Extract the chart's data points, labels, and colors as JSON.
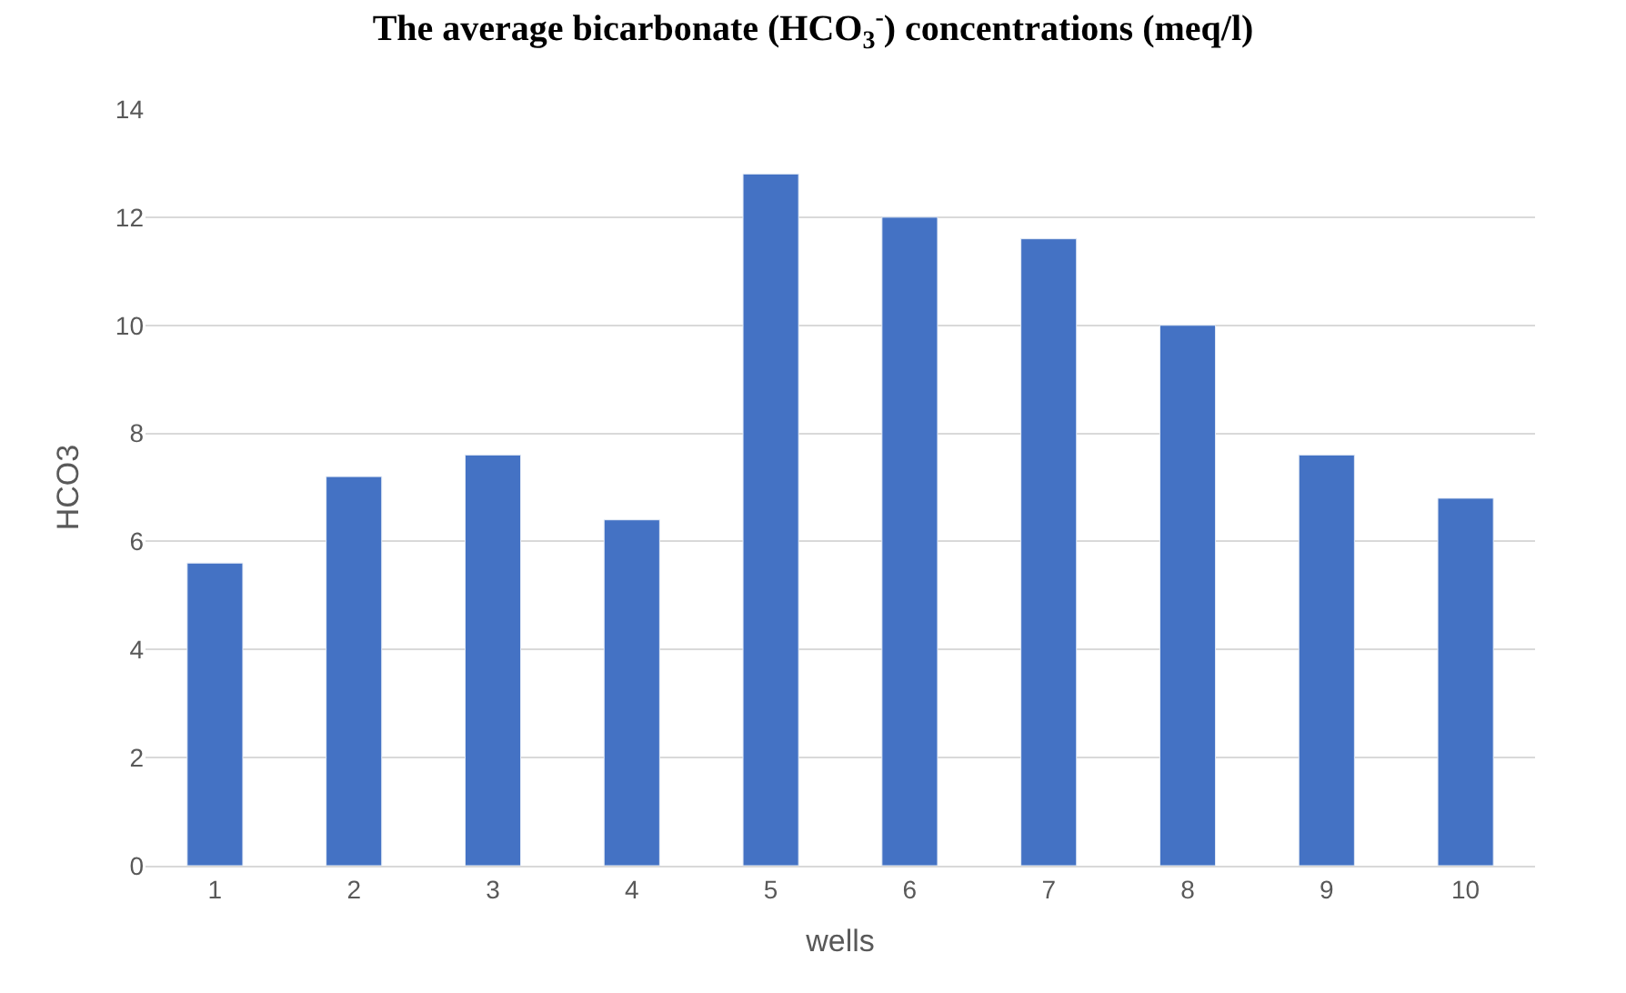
{
  "chart_data": {
    "type": "bar",
    "title": "The average bicarbonate (HCO$_{3}$$^{-}$) concentrations (meq/l)",
    "xlabel": "wells",
    "ylabel": "HCO3",
    "categories": [
      "1",
      "2",
      "3",
      "4",
      "5",
      "6",
      "7",
      "8",
      "9",
      "10"
    ],
    "values": [
      5.6,
      7.2,
      7.6,
      6.4,
      12.8,
      12.0,
      11.6,
      10.0,
      7.6,
      6.8
    ],
    "color": "#4472c4",
    "ylim": [
      0,
      14
    ],
    "yticks": [
      0,
      2,
      4,
      6,
      8,
      10,
      12,
      14
    ],
    "grid": "y"
  }
}
